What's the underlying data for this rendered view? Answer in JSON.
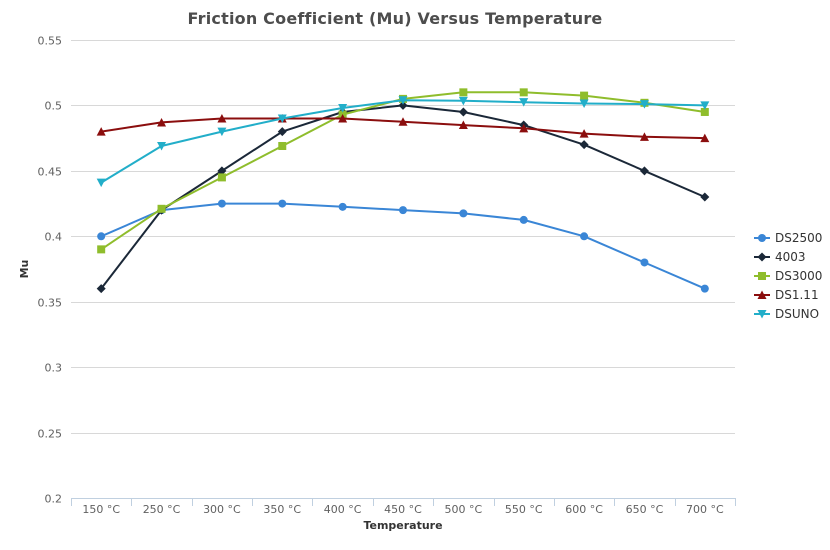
{
  "chart_data": {
    "type": "line",
    "title": "Friction Coefficient (Mu) Versus Temperature",
    "xlabel": "Temperature",
    "ylabel": "Mu",
    "categories": [
      "150 °C",
      "250 °C",
      "300 °C",
      "350 °C",
      "400 °C",
      "450 °C",
      "500 °C",
      "550 °C",
      "600 °C",
      "650 °C",
      "700 °C"
    ],
    "ylim": [
      0.2,
      0.55
    ],
    "yticks": [
      0.2,
      0.25,
      0.3,
      0.35,
      0.4,
      0.45,
      0.5,
      0.55
    ],
    "ytick_labels": [
      "0.2",
      "0.25",
      "0.3",
      "0.35",
      "0.4",
      "0.45",
      "0.5",
      "0.55"
    ],
    "grid": true,
    "legend_position": "right",
    "series": [
      {
        "name": "DS2500",
        "color": "#3a86d6",
        "marker": "circle",
        "values": [
          0.4,
          0.42,
          0.425,
          0.425,
          0.4225,
          0.42,
          0.4175,
          0.4125,
          0.4,
          0.38,
          0.36
        ]
      },
      {
        "name": "4003",
        "color": "#1b2838",
        "marker": "diamond",
        "values": [
          0.36,
          0.42,
          0.45,
          0.48,
          0.495,
          0.5,
          0.495,
          0.485,
          0.47,
          0.45,
          0.43
        ]
      },
      {
        "name": "DS3000",
        "color": "#8fbd2c",
        "marker": "square",
        "values": [
          0.39,
          0.421,
          0.445,
          0.469,
          0.493,
          0.505,
          0.51,
          0.51,
          0.5075,
          0.502,
          0.495
        ]
      },
      {
        "name": "DS1.11",
        "color": "#8b0e0e",
        "marker": "triangle",
        "values": [
          0.48,
          0.487,
          0.49,
          0.49,
          0.49,
          0.4875,
          0.485,
          0.4825,
          0.4785,
          0.476,
          0.475
        ]
      },
      {
        "name": "DSUNO",
        "color": "#22aec9",
        "marker": "triangle-down",
        "values": [
          0.441,
          0.469,
          0.48,
          0.49,
          0.498,
          0.504,
          0.5035,
          0.5025,
          0.5015,
          0.501,
          0.5
        ]
      }
    ]
  }
}
